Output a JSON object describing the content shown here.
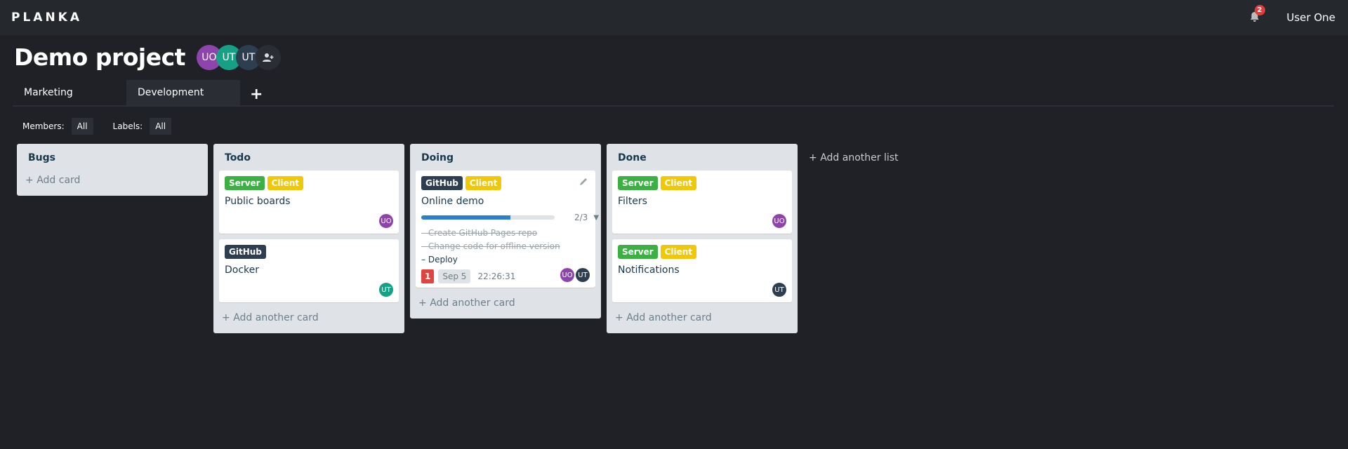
{
  "header": {
    "logo": "PLANKA",
    "notifications_count": "2",
    "user": "User One"
  },
  "project": {
    "title": "Demo project",
    "members": [
      {
        "initials": "UO",
        "color": "#8e44ad"
      },
      {
        "initials": "UT",
        "color": "#16a085"
      },
      {
        "initials": "UT",
        "color": "#2c3e50"
      }
    ]
  },
  "tabs": [
    {
      "label": "Marketing",
      "active": false
    },
    {
      "label": "Development",
      "active": true
    }
  ],
  "filters": {
    "members_label": "Members:",
    "members_value": "All",
    "labels_label": "Labels:",
    "labels_value": "All"
  },
  "colors": {
    "Server": "#3cb043",
    "Client": "#f0c808",
    "GitHub": "#2c3e50",
    "UO": "#8e44ad",
    "UT_green": "#16a085",
    "UT_dark": "#2c3e50"
  },
  "lists": [
    {
      "name": "Bugs",
      "add_label": "Add card",
      "cards": []
    },
    {
      "name": "Todo",
      "add_label": "Add another card",
      "cards": [
        {
          "labels": [
            "Server",
            "Client"
          ],
          "title": "Public boards",
          "members": [
            "UO"
          ]
        },
        {
          "labels": [
            "GitHub"
          ],
          "title": "Docker",
          "members": [
            "UT"
          ]
        }
      ]
    },
    {
      "name": "Doing",
      "add_label": "Add another card",
      "cards": [
        {
          "labels": [
            "GitHub",
            "Client"
          ],
          "title": "Online demo",
          "progress": "2/3",
          "progress_fraction": 0.667,
          "tasks": [
            {
              "text": "Create GitHub Pages repo",
              "done": true
            },
            {
              "text": "Change code for offline version",
              "done": true
            },
            {
              "text": "Deploy",
              "done": false
            }
          ],
          "count": "1",
          "due": "Sep 5",
          "timer": "22:26:31",
          "members": [
            "UO",
            "UT"
          ]
        }
      ]
    },
    {
      "name": "Done",
      "add_label": "Add another card",
      "cards": [
        {
          "labels": [
            "Server",
            "Client"
          ],
          "title": "Filters",
          "members": [
            "UO"
          ]
        },
        {
          "labels": [
            "Server",
            "Client"
          ],
          "title": "Notifications",
          "members": [
            "UT"
          ]
        }
      ]
    }
  ],
  "add_list_label": "Add another list"
}
